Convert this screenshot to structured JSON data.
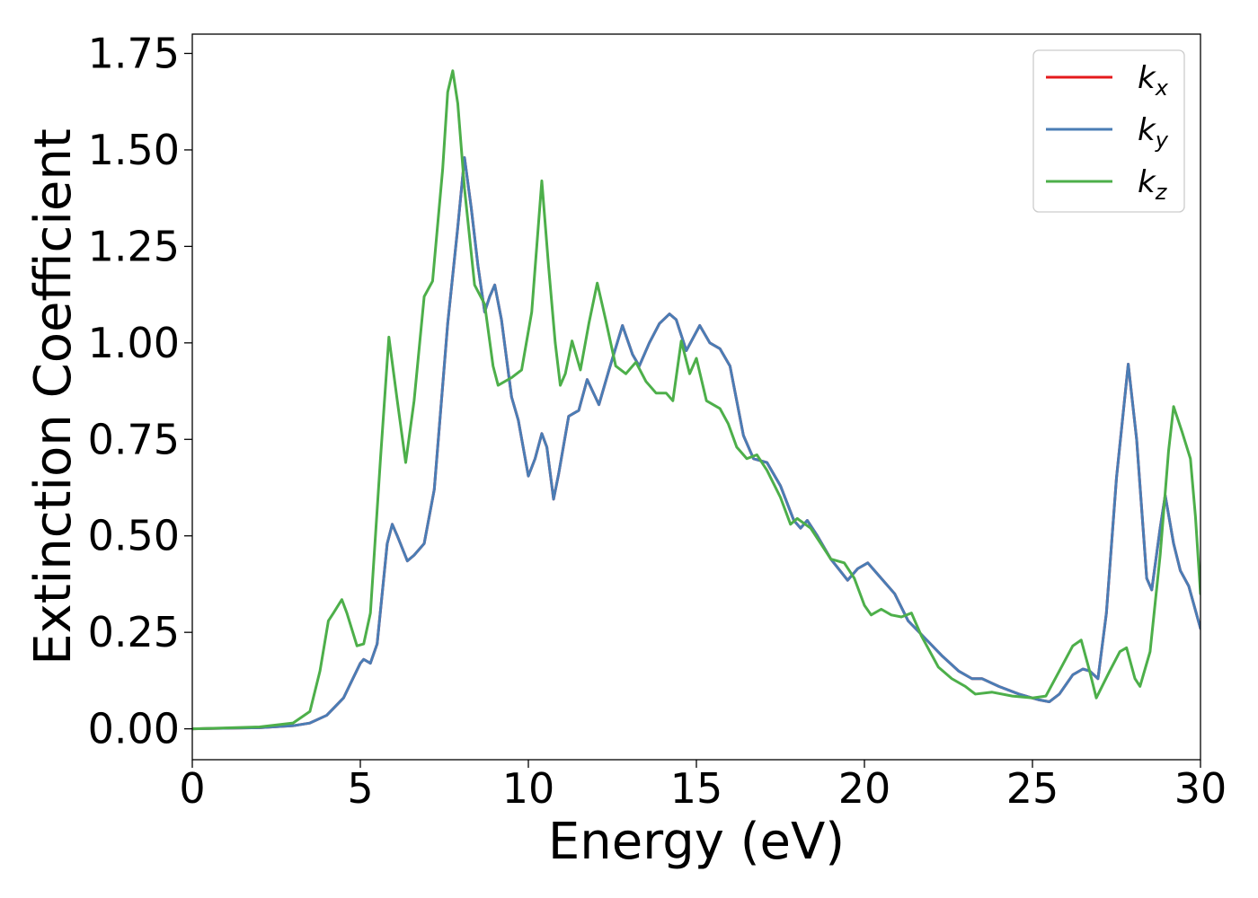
{
  "chart_data": {
    "type": "line",
    "xlabel": "Energy (eV)",
    "ylabel": "Extinction Coefficient",
    "xlim": [
      0,
      30
    ],
    "ylim": [
      -0.08,
      1.8
    ],
    "xticks": [
      0,
      5,
      10,
      15,
      20,
      25,
      30
    ],
    "xtick_labels": [
      "0",
      "5",
      "10",
      "15",
      "20",
      "25",
      "30"
    ],
    "yticks": [
      0,
      0.25,
      0.5,
      0.75,
      1.0,
      1.25,
      1.5,
      1.75
    ],
    "ytick_labels": [
      "0.00",
      "0.25",
      "0.50",
      "0.75",
      "1.00",
      "1.25",
      "1.50",
      "1.75"
    ],
    "grid": false,
    "legend_position": "top-right",
    "series": [
      {
        "name": "k_x",
        "label_base": "k",
        "label_sub": "x",
        "color": "#e41a1c",
        "points": [
          [
            0,
            0
          ],
          [
            2,
            0.003
          ],
          [
            3,
            0.008
          ],
          [
            3.5,
            0.015
          ],
          [
            4,
            0.035
          ],
          [
            4.5,
            0.08
          ],
          [
            5,
            0.17
          ],
          [
            5.1,
            0.18
          ],
          [
            5.3,
            0.17
          ],
          [
            5.5,
            0.22
          ],
          [
            5.8,
            0.48
          ],
          [
            5.95,
            0.53
          ],
          [
            6.1,
            0.5
          ],
          [
            6.4,
            0.435
          ],
          [
            6.6,
            0.45
          ],
          [
            6.9,
            0.48
          ],
          [
            7.2,
            0.62
          ],
          [
            7.6,
            1.05
          ],
          [
            7.9,
            1.3
          ],
          [
            8.1,
            1.48
          ],
          [
            8.3,
            1.35
          ],
          [
            8.5,
            1.2
          ],
          [
            8.7,
            1.08
          ],
          [
            8.85,
            1.12
          ],
          [
            9,
            1.15
          ],
          [
            9.2,
            1.06
          ],
          [
            9.5,
            0.86
          ],
          [
            9.7,
            0.8
          ],
          [
            10,
            0.655
          ],
          [
            10.2,
            0.7
          ],
          [
            10.4,
            0.765
          ],
          [
            10.55,
            0.73
          ],
          [
            10.75,
            0.595
          ],
          [
            10.9,
            0.66
          ],
          [
            11.2,
            0.81
          ],
          [
            11.5,
            0.825
          ],
          [
            11.75,
            0.905
          ],
          [
            12.1,
            0.84
          ],
          [
            12.4,
            0.93
          ],
          [
            12.8,
            1.045
          ],
          [
            13.1,
            0.97
          ],
          [
            13.3,
            0.94
          ],
          [
            13.6,
            1.0
          ],
          [
            13.9,
            1.05
          ],
          [
            14.2,
            1.075
          ],
          [
            14.4,
            1.06
          ],
          [
            14.7,
            0.98
          ],
          [
            15.1,
            1.045
          ],
          [
            15.4,
            1.0
          ],
          [
            15.7,
            0.985
          ],
          [
            16,
            0.94
          ],
          [
            16.2,
            0.85
          ],
          [
            16.4,
            0.76
          ],
          [
            16.7,
            0.7
          ],
          [
            17.1,
            0.69
          ],
          [
            17.5,
            0.63
          ],
          [
            17.9,
            0.54
          ],
          [
            18.1,
            0.52
          ],
          [
            18.3,
            0.54
          ],
          [
            18.6,
            0.5
          ],
          [
            19,
            0.44
          ],
          [
            19.5,
            0.385
          ],
          [
            19.8,
            0.415
          ],
          [
            20.1,
            0.43
          ],
          [
            20.5,
            0.39
          ],
          [
            20.9,
            0.35
          ],
          [
            21.3,
            0.28
          ],
          [
            21.8,
            0.235
          ],
          [
            22.3,
            0.19
          ],
          [
            22.8,
            0.15
          ],
          [
            23.2,
            0.13
          ],
          [
            23.5,
            0.13
          ],
          [
            24,
            0.11
          ],
          [
            24.6,
            0.09
          ],
          [
            25.2,
            0.075
          ],
          [
            25.5,
            0.07
          ],
          [
            25.8,
            0.09
          ],
          [
            26.2,
            0.14
          ],
          [
            26.5,
            0.155
          ],
          [
            26.7,
            0.15
          ],
          [
            26.95,
            0.13
          ],
          [
            27.2,
            0.3
          ],
          [
            27.5,
            0.65
          ],
          [
            27.85,
            0.945
          ],
          [
            28.1,
            0.75
          ],
          [
            28.4,
            0.39
          ],
          [
            28.55,
            0.36
          ],
          [
            28.8,
            0.52
          ],
          [
            28.95,
            0.605
          ],
          [
            29.2,
            0.48
          ],
          [
            29.4,
            0.41
          ],
          [
            29.65,
            0.37
          ],
          [
            30,
            0.26
          ]
        ]
      },
      {
        "name": "k_y",
        "label_base": "k",
        "label_sub": "y",
        "color": "#4a7db5",
        "points": [
          [
            0,
            0
          ],
          [
            2,
            0.003
          ],
          [
            3,
            0.008
          ],
          [
            3.5,
            0.015
          ],
          [
            4,
            0.035
          ],
          [
            4.5,
            0.08
          ],
          [
            5,
            0.17
          ],
          [
            5.1,
            0.18
          ],
          [
            5.3,
            0.17
          ],
          [
            5.5,
            0.22
          ],
          [
            5.8,
            0.48
          ],
          [
            5.95,
            0.53
          ],
          [
            6.1,
            0.5
          ],
          [
            6.4,
            0.435
          ],
          [
            6.6,
            0.45
          ],
          [
            6.9,
            0.48
          ],
          [
            7.2,
            0.62
          ],
          [
            7.6,
            1.05
          ],
          [
            7.9,
            1.3
          ],
          [
            8.1,
            1.48
          ],
          [
            8.3,
            1.35
          ],
          [
            8.5,
            1.2
          ],
          [
            8.7,
            1.08
          ],
          [
            8.85,
            1.12
          ],
          [
            9,
            1.15
          ],
          [
            9.2,
            1.06
          ],
          [
            9.5,
            0.86
          ],
          [
            9.7,
            0.8
          ],
          [
            10,
            0.655
          ],
          [
            10.2,
            0.7
          ],
          [
            10.4,
            0.765
          ],
          [
            10.55,
            0.73
          ],
          [
            10.75,
            0.595
          ],
          [
            10.9,
            0.66
          ],
          [
            11.2,
            0.81
          ],
          [
            11.5,
            0.825
          ],
          [
            11.75,
            0.905
          ],
          [
            12.1,
            0.84
          ],
          [
            12.4,
            0.93
          ],
          [
            12.8,
            1.045
          ],
          [
            13.1,
            0.97
          ],
          [
            13.3,
            0.94
          ],
          [
            13.6,
            1.0
          ],
          [
            13.9,
            1.05
          ],
          [
            14.2,
            1.075
          ],
          [
            14.4,
            1.06
          ],
          [
            14.7,
            0.98
          ],
          [
            15.1,
            1.045
          ],
          [
            15.4,
            1.0
          ],
          [
            15.7,
            0.985
          ],
          [
            16,
            0.94
          ],
          [
            16.2,
            0.85
          ],
          [
            16.4,
            0.76
          ],
          [
            16.7,
            0.7
          ],
          [
            17.1,
            0.69
          ],
          [
            17.5,
            0.63
          ],
          [
            17.9,
            0.54
          ],
          [
            18.1,
            0.52
          ],
          [
            18.3,
            0.54
          ],
          [
            18.6,
            0.5
          ],
          [
            19,
            0.44
          ],
          [
            19.5,
            0.385
          ],
          [
            19.8,
            0.415
          ],
          [
            20.1,
            0.43
          ],
          [
            20.5,
            0.39
          ],
          [
            20.9,
            0.35
          ],
          [
            21.3,
            0.28
          ],
          [
            21.8,
            0.235
          ],
          [
            22.3,
            0.19
          ],
          [
            22.8,
            0.15
          ],
          [
            23.2,
            0.13
          ],
          [
            23.5,
            0.13
          ],
          [
            24,
            0.11
          ],
          [
            24.6,
            0.09
          ],
          [
            25.2,
            0.075
          ],
          [
            25.5,
            0.07
          ],
          [
            25.8,
            0.09
          ],
          [
            26.2,
            0.14
          ],
          [
            26.5,
            0.155
          ],
          [
            26.7,
            0.15
          ],
          [
            26.95,
            0.13
          ],
          [
            27.2,
            0.3
          ],
          [
            27.5,
            0.65
          ],
          [
            27.85,
            0.945
          ],
          [
            28.1,
            0.75
          ],
          [
            28.4,
            0.39
          ],
          [
            28.55,
            0.36
          ],
          [
            28.8,
            0.52
          ],
          [
            28.95,
            0.605
          ],
          [
            29.2,
            0.48
          ],
          [
            29.4,
            0.41
          ],
          [
            29.65,
            0.37
          ],
          [
            30,
            0.26
          ]
        ]
      },
      {
        "name": "k_z",
        "label_base": "k",
        "label_sub": "z",
        "color": "#4daf4a",
        "points": [
          [
            0,
            0
          ],
          [
            2,
            0.005
          ],
          [
            3,
            0.015
          ],
          [
            3.5,
            0.045
          ],
          [
            3.8,
            0.15
          ],
          [
            4.05,
            0.28
          ],
          [
            4.2,
            0.3
          ],
          [
            4.45,
            0.335
          ],
          [
            4.6,
            0.3
          ],
          [
            4.9,
            0.215
          ],
          [
            5.1,
            0.22
          ],
          [
            5.3,
            0.3
          ],
          [
            5.6,
            0.7
          ],
          [
            5.85,
            1.015
          ],
          [
            6.1,
            0.85
          ],
          [
            6.35,
            0.69
          ],
          [
            6.6,
            0.85
          ],
          [
            6.9,
            1.12
          ],
          [
            7.15,
            1.16
          ],
          [
            7.45,
            1.45
          ],
          [
            7.6,
            1.65
          ],
          [
            7.75,
            1.705
          ],
          [
            7.9,
            1.62
          ],
          [
            8.1,
            1.4
          ],
          [
            8.4,
            1.15
          ],
          [
            8.7,
            1.1
          ],
          [
            8.95,
            0.94
          ],
          [
            9.1,
            0.89
          ],
          [
            9.5,
            0.91
          ],
          [
            9.8,
            0.93
          ],
          [
            10.1,
            1.08
          ],
          [
            10.4,
            1.42
          ],
          [
            10.6,
            1.2
          ],
          [
            10.8,
            1.0
          ],
          [
            10.95,
            0.89
          ],
          [
            11.1,
            0.92
          ],
          [
            11.3,
            1.005
          ],
          [
            11.55,
            0.93
          ],
          [
            11.8,
            1.05
          ],
          [
            12.05,
            1.155
          ],
          [
            12.3,
            1.06
          ],
          [
            12.6,
            0.94
          ],
          [
            12.9,
            0.92
          ],
          [
            13.2,
            0.95
          ],
          [
            13.5,
            0.9
          ],
          [
            13.8,
            0.87
          ],
          [
            14.1,
            0.87
          ],
          [
            14.3,
            0.85
          ],
          [
            14.55,
            1.005
          ],
          [
            14.8,
            0.92
          ],
          [
            15,
            0.96
          ],
          [
            15.3,
            0.85
          ],
          [
            15.7,
            0.83
          ],
          [
            15.95,
            0.79
          ],
          [
            16.2,
            0.73
          ],
          [
            16.5,
            0.7
          ],
          [
            16.8,
            0.71
          ],
          [
            17.1,
            0.67
          ],
          [
            17.5,
            0.6
          ],
          [
            17.8,
            0.53
          ],
          [
            18,
            0.545
          ],
          [
            18.4,
            0.52
          ],
          [
            18.7,
            0.48
          ],
          [
            19,
            0.44
          ],
          [
            19.4,
            0.43
          ],
          [
            19.7,
            0.39
          ],
          [
            20,
            0.32
          ],
          [
            20.2,
            0.295
          ],
          [
            20.5,
            0.31
          ],
          [
            20.8,
            0.295
          ],
          [
            21.1,
            0.29
          ],
          [
            21.4,
            0.3
          ],
          [
            21.7,
            0.24
          ],
          [
            22.2,
            0.16
          ],
          [
            22.6,
            0.13
          ],
          [
            23,
            0.11
          ],
          [
            23.3,
            0.09
          ],
          [
            23.8,
            0.095
          ],
          [
            24.4,
            0.085
          ],
          [
            25,
            0.08
          ],
          [
            25.4,
            0.085
          ],
          [
            25.8,
            0.15
          ],
          [
            26.2,
            0.215
          ],
          [
            26.45,
            0.23
          ],
          [
            26.7,
            0.15
          ],
          [
            26.9,
            0.08
          ],
          [
            27.3,
            0.15
          ],
          [
            27.6,
            0.2
          ],
          [
            27.8,
            0.21
          ],
          [
            28.05,
            0.13
          ],
          [
            28.2,
            0.11
          ],
          [
            28.5,
            0.2
          ],
          [
            28.8,
            0.45
          ],
          [
            29.05,
            0.72
          ],
          [
            29.2,
            0.835
          ],
          [
            29.45,
            0.77
          ],
          [
            29.7,
            0.7
          ],
          [
            29.85,
            0.55
          ],
          [
            30,
            0.35
          ]
        ]
      }
    ]
  }
}
